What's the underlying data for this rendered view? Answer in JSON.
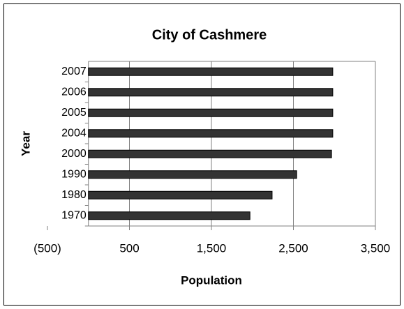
{
  "chart_data": {
    "type": "bar",
    "orientation": "horizontal",
    "title": "City of Cashmere",
    "x_label": "Population",
    "y_label": "Year",
    "categories": [
      "1970",
      "1980",
      "1990",
      "2000",
      "2004",
      "2005",
      "2006",
      "2007"
    ],
    "values": [
      1970,
      2240,
      2540,
      2965,
      2980,
      2980,
      2980,
      2980
    ],
    "color": "#333333",
    "xlim": [
      -500,
      3500
    ],
    "xticks": [
      {
        "value": -500,
        "label": "(500)"
      },
      500,
      {
        "value": 1500,
        "label": "1,500"
      },
      {
        "value": 2500,
        "label": "2,500"
      },
      {
        "value": 3500,
        "label": "3,500"
      }
    ],
    "grid": true
  }
}
